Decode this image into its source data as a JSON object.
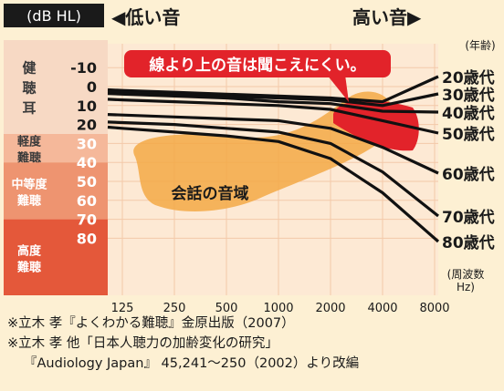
{
  "header": {
    "unit_label": "(dB HL)",
    "low_pitch_label": "◀低い音",
    "high_pitch_label": "高い音▶"
  },
  "callout": {
    "text": "線より上の音は聞こえにくい。"
  },
  "zones": [
    {
      "label": "健\n聴\n耳",
      "from": -15,
      "to": 25,
      "color": "#f7d9c4"
    },
    {
      "label": "軽度\n難聴",
      "from": 25,
      "to": 40,
      "color": "#f5b89a"
    },
    {
      "label": "中等度\n難聴",
      "from": 40,
      "to": 70,
      "color": "#ee9470"
    },
    {
      "label": "高度\n難聴",
      "from": 70,
      "to": 90,
      "color": "#e4583a"
    }
  ],
  "speech_area": {
    "label": "会話の音域",
    "color": "#f3a945"
  },
  "colors": {
    "line": "#111111",
    "highlight": "#e2232a",
    "background": "#fdf0d3"
  },
  "chart_data": {
    "type": "line",
    "title": "",
    "xlabel": "(周波数\nHz)",
    "ylabel": "(dB HL)",
    "x": [
      125,
      250,
      500,
      1000,
      2000,
      4000,
      8000
    ],
    "x_ticks": [
      "125",
      "250",
      "500",
      "1000",
      "2000",
      "4000",
      "8000"
    ],
    "y_ticks": [
      -10,
      0,
      10,
      20,
      30,
      40,
      50,
      60,
      70,
      80
    ],
    "ylim": [
      -15,
      90
    ],
    "y_inverted": true,
    "x_scale": "log2",
    "legend_title": "(年齢)",
    "series": [
      {
        "name": "20歳代",
        "values": [
          2,
          3,
          4,
          5,
          6,
          8,
          9
        ]
      },
      {
        "name": "30歳代",
        "values": [
          3,
          4,
          5,
          6,
          7,
          10,
          13
        ]
      },
      {
        "name": "40歳代",
        "values": [
          4,
          5,
          6,
          8,
          9,
          13,
          17
        ]
      },
      {
        "name": "50歳代",
        "values": [
          7,
          8,
          9,
          10,
          12,
          18,
          24
        ]
      },
      {
        "name": "60歳代",
        "values": [
          15,
          16,
          17,
          18,
          22,
          32,
          40
        ]
      },
      {
        "name": "70歳代",
        "values": [
          19,
          20,
          22,
          24,
          30,
          45,
          60
        ]
      },
      {
        "name": "80歳代",
        "values": [
          22,
          24,
          26,
          29,
          38,
          56,
          73
        ]
      }
    ]
  },
  "notes": [
    "※立木 孝『よくわかる難聴』金原出版（2007）",
    "※立木 孝 他「日本人聴力の加齢変化の研究」",
    "『Audiology Japan』 45,241〜250（2002）より改編"
  ]
}
